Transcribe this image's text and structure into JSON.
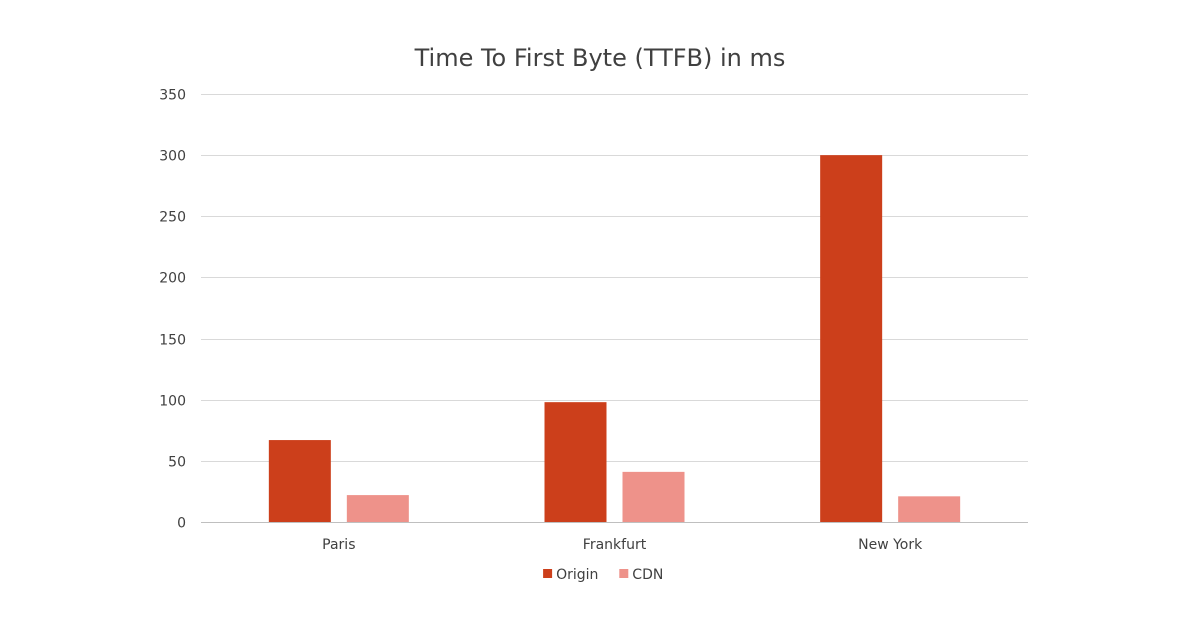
{
  "chart_data": {
    "type": "bar",
    "title": "Time To First Byte (TTFB) in ms",
    "xlabel": "",
    "ylabel": "",
    "categories": [
      "Paris",
      "Frankfurt",
      "New York"
    ],
    "series": [
      {
        "name": "Origin",
        "values": [
          67,
          98,
          300
        ],
        "color": "#cc3f1b"
      },
      {
        "name": "CDN",
        "values": [
          22,
          41,
          21
        ],
        "color": "#ee928a"
      }
    ],
    "ylim": [
      0,
      350
    ],
    "y_ticks": [
      0,
      50,
      100,
      150,
      200,
      250,
      300,
      350
    ],
    "grid": true,
    "legend_position": "bottom"
  }
}
